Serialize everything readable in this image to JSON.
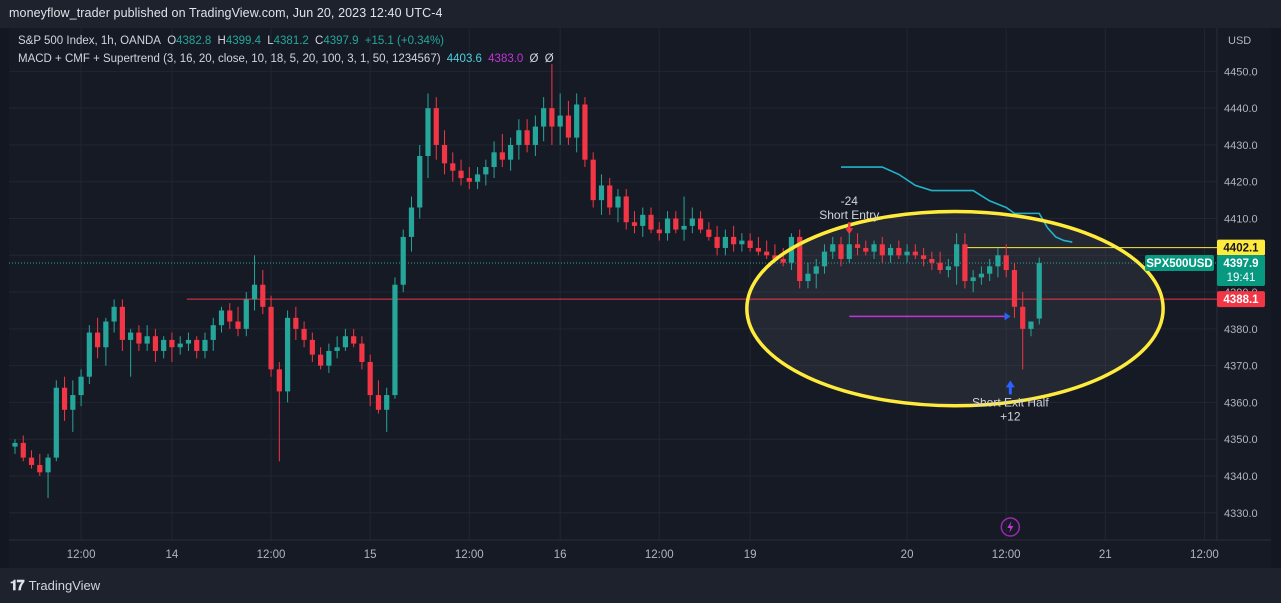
{
  "header": {
    "published": "moneyflow_trader published on TradingView.com, Jun 20, 2023 12:40 UTC-4"
  },
  "legend": {
    "symbol": "S&P 500 Index, 1h, OANDA",
    "o_label": "O",
    "o_value": "4382.8",
    "h_label": "H",
    "h_value": "4399.4",
    "l_label": "L",
    "l_value": "4381.2",
    "c_label": "C",
    "c_value": "4397.9",
    "change": "+15.1 (+0.34%)",
    "indicator": "MACD + CMF + Supertrend (3, 16, 20, close, 10, 18, 5, 20, 100, 3, 1, 50, 1234567)",
    "ind_v1": "4403.6",
    "ind_v2": "4383.0",
    "ind_v3": "Ø",
    "ind_v4": "Ø"
  },
  "footer": {
    "brand": "TradingView",
    "logo": "tv-logo-icon"
  },
  "chart_data": {
    "type": "candlestick",
    "currency": "USD",
    "y_ticks": [
      4330,
      4340,
      4350,
      4360,
      4370,
      4380,
      4390,
      4400,
      4410,
      4420,
      4430,
      4440,
      4450
    ],
    "y_tick_labels": [
      "4330.0",
      "4340.0",
      "4350.0",
      "4360.0",
      "4370.0",
      "4380.0",
      "4390.0",
      "4400.0",
      "4410.0",
      "4420.0",
      "4430.0",
      "4440.0",
      "4450.0"
    ],
    "ylim": [
      4322.6,
      4461.8
    ],
    "x_tick_labels": [
      "12:00",
      "14",
      "12:00",
      "15",
      "12:00",
      "16",
      "12:00",
      "19",
      "20",
      "12:00",
      "21",
      "12:00"
    ],
    "price_labels": {
      "resistance": "4402.1",
      "symbol": "SPX500USD",
      "current": "4397.9",
      "countdown": "19:41",
      "support": "4388.1"
    },
    "levels": {
      "resistance": 4402.1,
      "support": 4388.1,
      "current": 4397.9
    },
    "annotations": {
      "entry_value": "-24",
      "entry_label": "Short Entry",
      "exit_label": "Short Exit Half",
      "exit_value": "+12"
    },
    "supertrend": [
      [
        100,
        4424.0
      ],
      [
        105,
        4424.0
      ],
      [
        107,
        4422.0
      ],
      [
        109,
        4419.0
      ],
      [
        111,
        4417.6
      ],
      [
        116,
        4417.6
      ],
      [
        118,
        4414.8
      ],
      [
        120,
        4413.0
      ],
      [
        121,
        4411.4
      ],
      [
        124,
        4411.4
      ],
      [
        125,
        4407.5
      ],
      [
        126,
        4405.0
      ],
      [
        127,
        4404.0
      ],
      [
        128,
        4403.6
      ]
    ],
    "entry_marker": {
      "bar": 101,
      "price": 4409
    },
    "exit_marker": {
      "bar": 120.5,
      "price": 4366
    },
    "exit_line": {
      "from": 101,
      "to": 119.8,
      "price": 4383.4
    },
    "circle": {
      "center_bar": 113.8,
      "center_price": 4385.5,
      "rx_bars": 25.2,
      "ry_price": 26.4
    },
    "candles": [
      [
        4348,
        4350,
        4346,
        4349
      ],
      [
        4349,
        4351,
        4344,
        4345
      ],
      [
        4345,
        4347,
        4342,
        4343
      ],
      [
        4343,
        4346,
        4340,
        4341
      ],
      [
        4341,
        4346,
        4334,
        4345
      ],
      [
        4345,
        4366,
        4344,
        4364
      ],
      [
        4364,
        4367,
        4355,
        4358
      ],
      [
        4358,
        4366,
        4352,
        4362
      ],
      [
        4362,
        4369,
        4359,
        4367
      ],
      [
        4367,
        4381,
        4365,
        4379
      ],
      [
        4379,
        4383,
        4372,
        4375
      ],
      [
        4375,
        4383,
        4370,
        4382
      ],
      [
        4382,
        4388,
        4379,
        4386
      ],
      [
        4386,
        4388,
        4374,
        4377
      ],
      [
        4377,
        4380,
        4367,
        4379
      ],
      [
        4379,
        4381,
        4374,
        4376
      ],
      [
        4376,
        4381,
        4374,
        4378
      ],
      [
        4378,
        4380,
        4371,
        4374
      ],
      [
        4374,
        4378,
        4372,
        4377
      ],
      [
        4377,
        4379,
        4371,
        4375
      ],
      [
        4375,
        4378,
        4373,
        4376
      ],
      [
        4376,
        4379,
        4374,
        4377
      ],
      [
        4377,
        4378,
        4372,
        4374
      ],
      [
        4374,
        4379,
        4372,
        4377
      ],
      [
        4377,
        4383,
        4374,
        4381
      ],
      [
        4381,
        4386,
        4379,
        4385
      ],
      [
        4385,
        4387,
        4380,
        4382
      ],
      [
        4382,
        4386,
        4378,
        4380
      ],
      [
        4380,
        4390,
        4378,
        4388
      ],
      [
        4388,
        4400,
        4385,
        4392
      ],
      [
        4392,
        4396,
        4384,
        4386
      ],
      [
        4386,
        4389,
        4367,
        4369
      ],
      [
        4369,
        4371,
        4344,
        4363
      ],
      [
        4363,
        4385,
        4360,
        4383
      ],
      [
        4383,
        4386,
        4377,
        4380
      ],
      [
        4380,
        4382,
        4375,
        4377
      ],
      [
        4377,
        4379,
        4371,
        4373
      ],
      [
        4373,
        4375,
        4369,
        4370
      ],
      [
        4370,
        4376,
        4368,
        4374
      ],
      [
        4374,
        4378,
        4372,
        4375
      ],
      [
        4375,
        4380,
        4374,
        4378
      ],
      [
        4378,
        4380,
        4375,
        4376
      ],
      [
        4376,
        4378,
        4369,
        4371
      ],
      [
        4371,
        4373,
        4359,
        4362
      ],
      [
        4362,
        4366,
        4357,
        4358
      ],
      [
        4358,
        4364,
        4352,
        4362
      ],
      [
        4362,
        4394,
        4361,
        4392
      ],
      [
        4392,
        4407,
        4390,
        4405
      ],
      [
        4405,
        4416,
        4401,
        4413
      ],
      [
        4413,
        4430,
        4410,
        4427
      ],
      [
        4427,
        4444,
        4421,
        4440
      ],
      [
        4440,
        4443,
        4426,
        4430
      ],
      [
        4430,
        4434,
        4422,
        4425
      ],
      [
        4425,
        4428,
        4420,
        4423
      ],
      [
        4423,
        4426,
        4419,
        4421
      ],
      [
        4421,
        4424,
        4418,
        4420
      ],
      [
        4420,
        4424,
        4418,
        4422
      ],
      [
        4422,
        4426,
        4419,
        4424
      ],
      [
        4424,
        4431,
        4421,
        4428
      ],
      [
        4428,
        4433,
        4424,
        4426
      ],
      [
        4426,
        4432,
        4423,
        4430
      ],
      [
        4430,
        4437,
        4426,
        4434
      ],
      [
        4434,
        4437,
        4428,
        4430
      ],
      [
        4430,
        4438,
        4427,
        4435
      ],
      [
        4435,
        4443,
        4431,
        4440
      ],
      [
        4440,
        4452,
        4430,
        4435
      ],
      [
        4435,
        4444,
        4430,
        4438
      ],
      [
        4438,
        4442,
        4430,
        4432
      ],
      [
        4432,
        4444,
        4428,
        4441
      ],
      [
        4441,
        4443,
        4424,
        4426
      ],
      [
        4426,
        4428,
        4413,
        4415
      ],
      [
        4415,
        4422,
        4411,
        4419
      ],
      [
        4419,
        4421,
        4411,
        4413
      ],
      [
        4413,
        4418,
        4409,
        4416
      ],
      [
        4416,
        4418,
        4407,
        4409
      ],
      [
        4409,
        4412,
        4406,
        4408
      ],
      [
        4408,
        4413,
        4405,
        4411
      ],
      [
        4411,
        4413,
        4406,
        4407
      ],
      [
        4407,
        4409,
        4404,
        4406
      ],
      [
        4406,
        4412,
        4404,
        4410
      ],
      [
        4410,
        4412,
        4406,
        4407
      ],
      [
        4407,
        4416,
        4404,
        4408
      ],
      [
        4408,
        4413,
        4406,
        4410
      ],
      [
        4410,
        4412,
        4406,
        4407
      ],
      [
        4407,
        4409,
        4404,
        4405
      ],
      [
        4405,
        4408,
        4400,
        4402
      ],
      [
        4402,
        4407,
        4400,
        4405
      ],
      [
        4405,
        4408,
        4401,
        4403
      ],
      [
        4403,
        4406,
        4401,
        4404
      ],
      [
        4404,
        4406,
        4401,
        4402
      ],
      [
        4402,
        4405,
        4400,
        4401
      ],
      [
        4401,
        4404,
        4399,
        4400
      ],
      [
        4400,
        4403,
        4398,
        4399
      ],
      [
        4399,
        4402,
        4397,
        4398
      ],
      [
        4398,
        4406,
        4396,
        4405
      ],
      [
        4405,
        4407,
        4391,
        4393
      ],
      [
        4393,
        4398,
        4391,
        4395
      ],
      [
        4395,
        4399,
        4391,
        4397
      ],
      [
        4397,
        4403,
        4395,
        4401
      ],
      [
        4401,
        4405,
        4399,
        4403
      ],
      [
        4403,
        4405,
        4397,
        4399
      ],
      [
        4399,
        4409,
        4398,
        4403
      ],
      [
        4403,
        4406,
        4400,
        4402
      ],
      [
        4402,
        4404,
        4400,
        4401
      ],
      [
        4401,
        4404,
        4399,
        4403
      ],
      [
        4403,
        4405,
        4398,
        4400
      ],
      [
        4400,
        4403,
        4398,
        4402
      ],
      [
        4402,
        4404,
        4399,
        4400
      ],
      [
        4400,
        4403,
        4398,
        4401
      ],
      [
        4401,
        4403,
        4399,
        4400
      ],
      [
        4400,
        4402,
        4397,
        4399
      ],
      [
        4399,
        4401,
        4396,
        4398
      ],
      [
        4398,
        4401,
        4395,
        4396
      ],
      [
        4396,
        4399,
        4394,
        4397
      ],
      [
        4397,
        4406,
        4392,
        4403
      ],
      [
        4403,
        4406,
        4391,
        4393
      ],
      [
        4393,
        4396,
        4390,
        4394
      ],
      [
        4394,
        4397,
        4392,
        4395
      ],
      [
        4395,
        4399,
        4393,
        4397
      ],
      [
        4397,
        4402,
        4394,
        4400
      ],
      [
        4400,
        4403,
        4394,
        4396
      ],
      [
        4396,
        4398,
        4383,
        4386
      ],
      [
        4386,
        4390,
        4369,
        4380
      ],
      [
        4380,
        4382,
        4378,
        4382
      ],
      [
        4382.8,
        4399.4,
        4381.2,
        4397.9
      ]
    ]
  }
}
